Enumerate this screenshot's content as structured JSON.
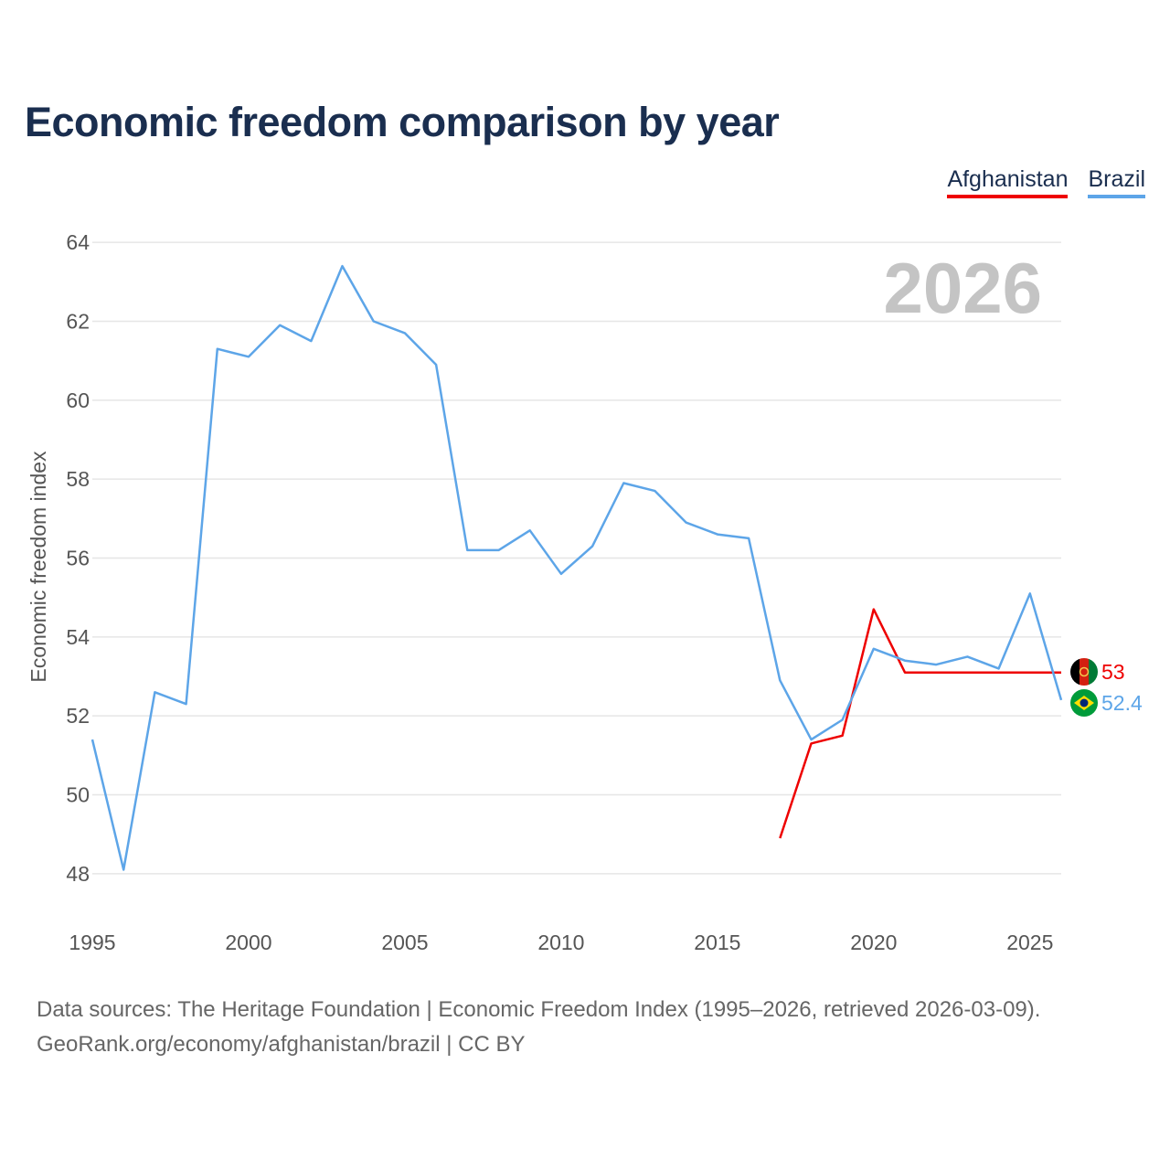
{
  "title": "Economic freedom comparison by year",
  "legend": {
    "afghanistan": "Afghanistan",
    "brazil": "Brazil"
  },
  "source": {
    "line1": "Data sources: The Heritage Foundation | Economic Freedom Index (1995–2026, retrieved 2026-03-09).",
    "line2": "GeoRank.org/economy/afghanistan/brazil | CC BY"
  },
  "chart_data": {
    "type": "line",
    "title": "Economic freedom comparison by year",
    "ylabel": "Economic freedom index",
    "xlabel": "",
    "year_label": "2026",
    "xlim": [
      1995,
      2026
    ],
    "ylim": [
      47,
      65
    ],
    "x_ticks": [
      1995,
      2000,
      2005,
      2010,
      2015,
      2020,
      2025
    ],
    "y_ticks": [
      48,
      50,
      52,
      54,
      56,
      58,
      60,
      62,
      64
    ],
    "grid": true,
    "legend_position": "top-right",
    "series": [
      {
        "name": "Afghanistan",
        "color": "#ee0000",
        "x": [
          2017,
          2018,
          2019,
          2020,
          2021,
          2022,
          2023,
          2024,
          2025,
          2026
        ],
        "values": [
          48.9,
          51.3,
          51.5,
          54.7,
          53.1,
          53.1,
          53.1,
          53.1,
          53.1,
          53.1
        ],
        "end_label": "53",
        "flag": "afghanistan-flag"
      },
      {
        "name": "Brazil",
        "color": "#5da5e8",
        "x": [
          1995,
          1996,
          1997,
          1998,
          1999,
          2000,
          2001,
          2002,
          2003,
          2004,
          2005,
          2006,
          2007,
          2008,
          2009,
          2010,
          2011,
          2012,
          2013,
          2014,
          2015,
          2016,
          2017,
          2018,
          2019,
          2020,
          2021,
          2022,
          2023,
          2024,
          2025,
          2026
        ],
        "values": [
          51.4,
          48.1,
          52.6,
          52.3,
          61.3,
          61.1,
          61.9,
          61.5,
          63.4,
          62.0,
          61.7,
          60.9,
          56.2,
          56.2,
          56.7,
          55.6,
          56.3,
          57.9,
          57.7,
          56.9,
          56.6,
          56.5,
          52.9,
          51.4,
          51.9,
          53.7,
          53.4,
          53.3,
          53.5,
          53.2,
          55.1,
          52.4
        ],
        "end_label": "52.4",
        "flag": "brazil-flag"
      }
    ]
  }
}
